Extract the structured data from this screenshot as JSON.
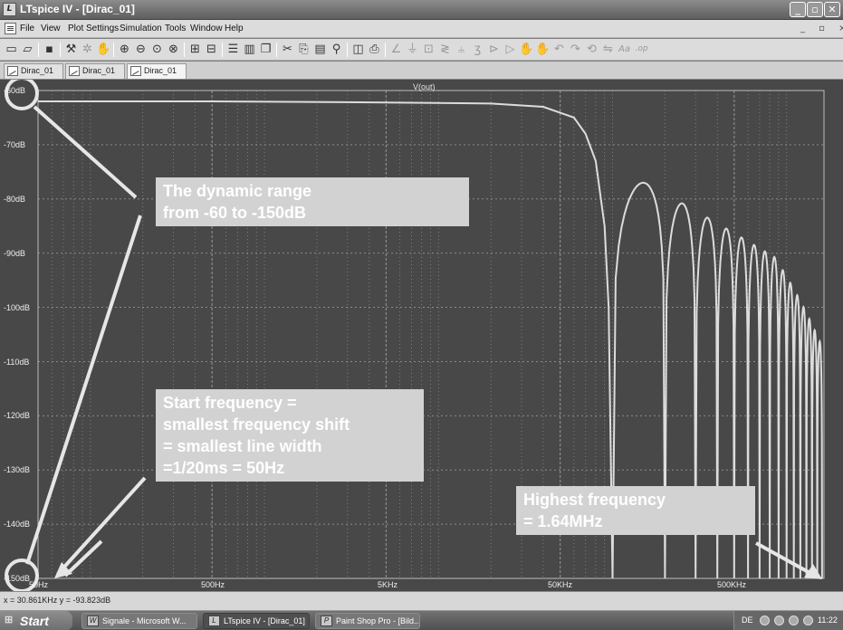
{
  "window": {
    "title": "LTspice IV - [Dirac_01]",
    "app_icon": "ltspice-app-icon",
    "controls": [
      "minimize",
      "maximize",
      "close"
    ]
  },
  "menu": {
    "items": [
      "File",
      "View",
      "Plot Settings",
      "Simulation",
      "Tools",
      "Window",
      "Help"
    ],
    "mdi_controls": "_ ▫ ×"
  },
  "toolbar": {
    "icons": [
      "open-schematic-icon",
      "open-file-icon",
      "save-icon",
      "settings-icon",
      "run-icon",
      "halt-icon",
      "zoom-in-icon",
      "zoom-out-icon",
      "zoom-area-icon",
      "zoom-fit-icon",
      "autorange-icon",
      "grid-icon",
      "tile-horizontal-icon",
      "tile-vertical-icon",
      "cascade-icon",
      "cut-icon",
      "copy-icon",
      "paste-icon",
      "find-icon",
      "print-preview-icon",
      "print-icon",
      "wire-icon",
      "ground-icon",
      "label-icon",
      "resistor-icon",
      "capacitor-icon",
      "inductor-icon",
      "diode-icon",
      "component-icon",
      "move-icon",
      "drag-icon",
      "undo-icon",
      "redo-icon",
      "rotate-icon",
      "mirror-icon",
      "text-icon",
      "spice-directive-icon"
    ]
  },
  "tabs": [
    {
      "label": "Dirac_01",
      "icon": "schematic-icon"
    },
    {
      "label": "Dirac_01",
      "icon": "waveform-icon"
    },
    {
      "label": "Dirac_01",
      "icon": "waveform-icon"
    }
  ],
  "plot": {
    "trace_label": "V(out)",
    "y_ticks": [
      "-60dB",
      "-70dB",
      "-80dB",
      "-90dB",
      "-100dB",
      "-110dB",
      "-120dB",
      "-130dB",
      "-140dB",
      "-150dB"
    ],
    "x_ticks": [
      "50Hz",
      "500Hz",
      "5KHz",
      "50KHz",
      "500KHz"
    ],
    "colors": {
      "background": "#484848",
      "trace": "#dcdcdc",
      "grid": "#8a8a8a",
      "callout": "#d2d2d2",
      "annotation": "#e6e6e6"
    }
  },
  "chart_data": {
    "type": "line",
    "title": "V(out)",
    "xlabel": "",
    "ylabel": "",
    "x_scale": "log",
    "xlim": [
      50,
      1640000
    ],
    "ylim": [
      -150,
      -60
    ],
    "series": [
      {
        "name": "V(out)",
        "x": [
          50,
          500,
          5000,
          20000,
          40000,
          60000,
          70000,
          80000,
          90000,
          95000,
          100000
        ],
        "values": [
          -62,
          -62,
          -62.2,
          -62.4,
          -63,
          -65,
          -68,
          -73,
          -85,
          -100,
          -150
        ]
      }
    ],
    "notes": "Above ~100KHz the trace forms sinc-like lobes: lobe peaks near -77, -83, -86, -88, -90 dB decreasing toward -130 dB at 1.64MHz, with notches dropping to -150 dB between lobes.",
    "grid": true
  },
  "annotations": {
    "dynamic_range": [
      "The dynamic range",
      "from -60 to -150dB"
    ],
    "start_frequency": [
      "Start frequency =",
      "smallest frequency shift",
      "= smallest line width",
      "=1/20ms = 50Hz"
    ],
    "highest_frequency": [
      "Highest frequency",
      "= 1.64MHz"
    ]
  },
  "status": {
    "text": "x = 30.861KHz   y = -93.823dB"
  },
  "taskbar": {
    "start_label": "Start",
    "tasks": [
      {
        "label": "Signale - Microsoft W...",
        "icon": "word-icon"
      },
      {
        "label": "LTspice IV - [Dirac_01]",
        "icon": "ltspice-icon"
      },
      {
        "label": "Paint Shop Pro - [Bild...",
        "icon": "paintshop-icon"
      }
    ],
    "tray_lang": "DE",
    "clock": "11:22"
  }
}
